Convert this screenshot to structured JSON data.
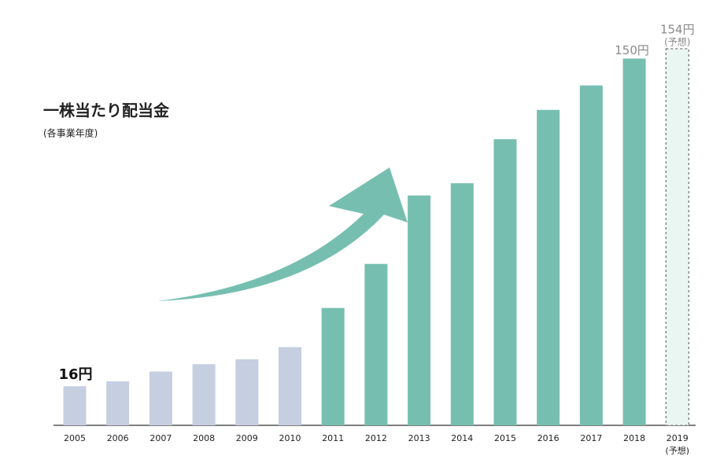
{
  "chart_data": {
    "type": "bar",
    "title": "一株当たり配当金",
    "subtitle": "(各事業年度)",
    "categories": [
      "2005",
      "2006",
      "2007",
      "2008",
      "2009",
      "2010",
      "2011",
      "2012",
      "2013",
      "2014",
      "2015",
      "2016",
      "2017",
      "2018",
      "2019"
    ],
    "values": [
      16,
      18,
      22,
      25,
      27,
      32,
      48,
      66,
      94,
      99,
      117,
      129,
      139,
      150,
      154
    ],
    "value_labels": [
      "16円",
      null,
      null,
      null,
      null,
      null,
      null,
      null,
      null,
      null,
      null,
      null,
      null,
      "150円",
      "154円"
    ],
    "value_label_colors": [
      "#111111",
      null,
      null,
      null,
      null,
      null,
      null,
      null,
      null,
      null,
      null,
      null,
      null,
      "#8a8a8a",
      "#8a8a8a"
    ],
    "colors": [
      "#c5cfe0",
      "#c5cfe0",
      "#c5cfe0",
      "#c5cfe0",
      "#c5cfe0",
      "#c5cfe0",
      "#76bfb0",
      "#76bfb0",
      "#76bfb0",
      "#76bfb0",
      "#76bfb0",
      "#76bfb0",
      "#76bfb0",
      "#76bfb0",
      "#e9f6f2"
    ],
    "dashed_categories": [
      "2019"
    ],
    "forecast_note": "(予想)"
  }
}
